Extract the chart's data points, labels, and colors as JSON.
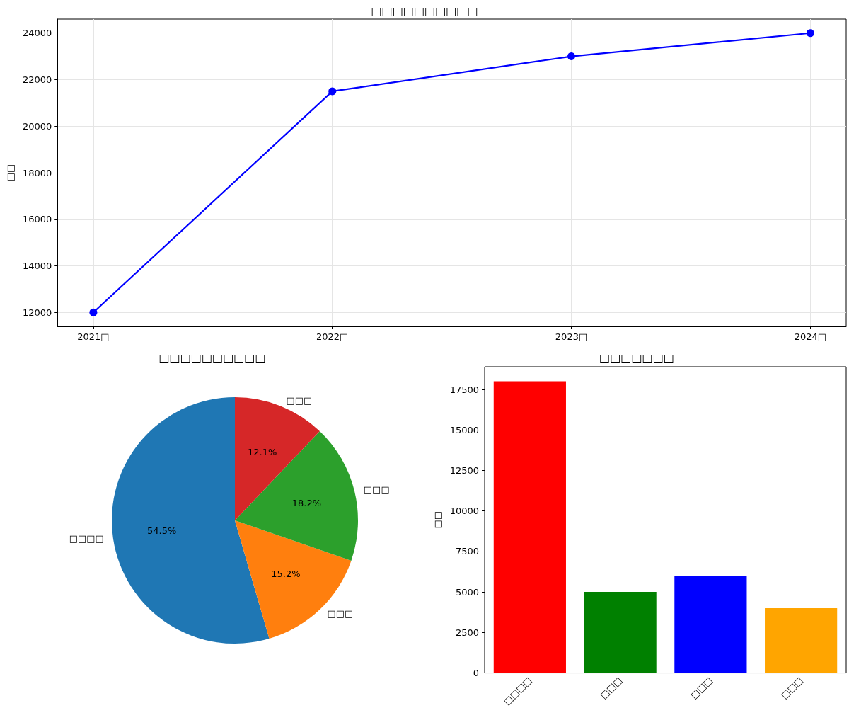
{
  "chart_data": [
    {
      "type": "line",
      "title": "□□□□□□□□□□",
      "ylabel": "□□",
      "categories": [
        "2021□",
        "2022□",
        "2023□",
        "2024□"
      ],
      "series": [
        {
          "color": "#0000ff",
          "values": [
            12000,
            21500,
            23000,
            24000
          ]
        }
      ],
      "ylim": [
        11400,
        24600
      ],
      "yticks": [
        12000,
        14000,
        16000,
        18000,
        20000,
        22000,
        24000
      ],
      "grid": true,
      "marker": "circle",
      "line_style": "solid"
    },
    {
      "type": "pie",
      "title": "□□□□□□□□□□",
      "categories": [
        "□□□□",
        "□□□",
        "□□□",
        "□□□"
      ],
      "values": [
        54.5,
        15.2,
        18.2,
        12.1
      ],
      "colors": [
        "#1f77b4",
        "#ff7f0e",
        "#2ca02c",
        "#d62728"
      ],
      "value_labels": [
        "54.5%",
        "15.2%",
        "18.2%",
        "12.1%"
      ]
    },
    {
      "type": "bar",
      "title": "□□□□□□□",
      "ylabel": "□□",
      "categories": [
        "□□□□",
        "□□□",
        "□□□",
        "□□□"
      ],
      "values": [
        18000,
        5000,
        6000,
        4000
      ],
      "colors": [
        "#ff0000",
        "#008000",
        "#0000ff",
        "#ffa500"
      ],
      "ylim": [
        0,
        18900
      ],
      "yticks": [
        0,
        2500,
        5000,
        7500,
        10000,
        12500,
        15000,
        17500
      ],
      "grid": false
    }
  ]
}
